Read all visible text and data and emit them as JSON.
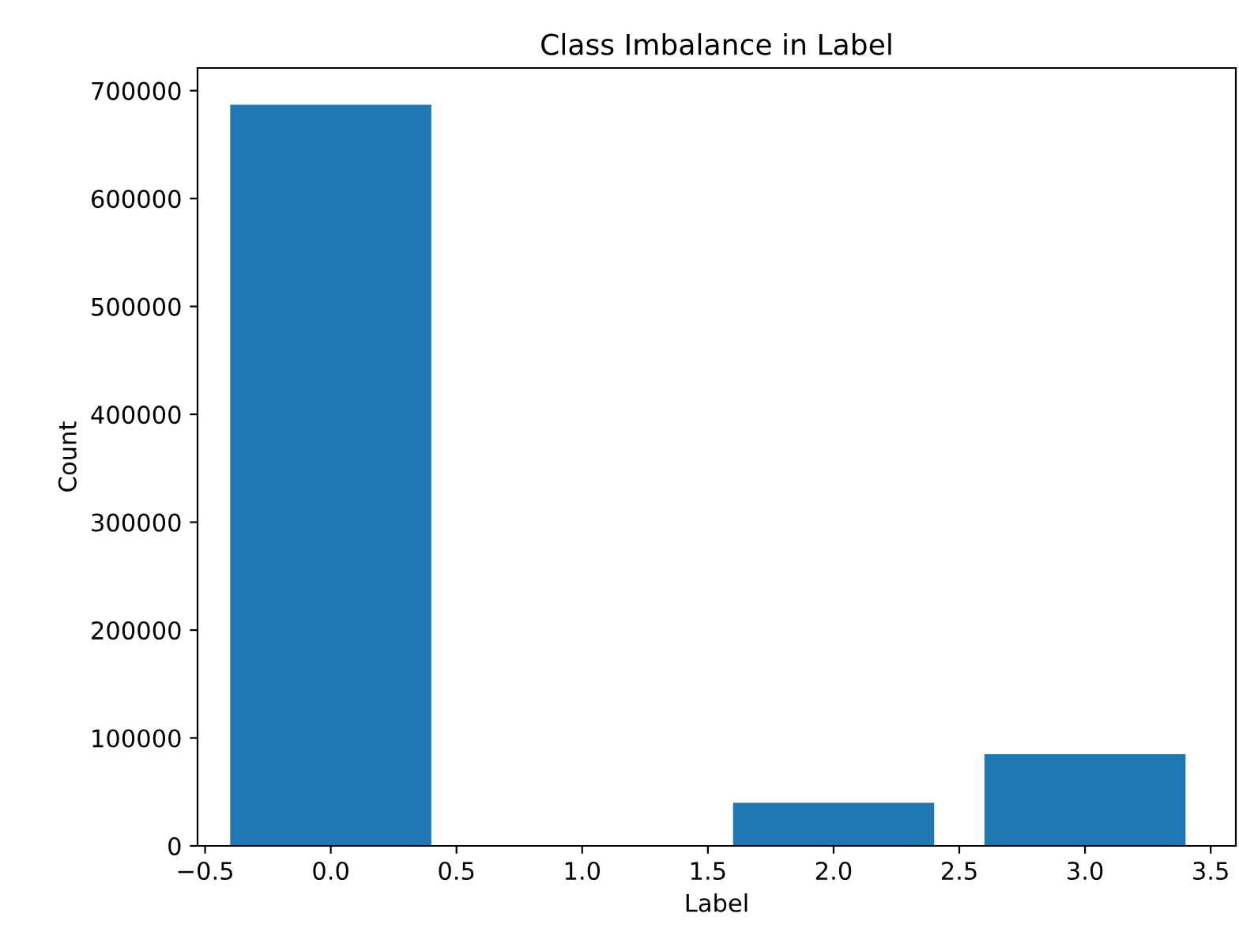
{
  "chart_data": {
    "type": "bar",
    "title": "Class Imbalance in Label",
    "xlabel": "Label",
    "ylabel": "Count",
    "x": [
      0,
      2,
      3
    ],
    "values": [
      687000,
      40000,
      85000
    ],
    "color": "#1f77b4",
    "xlim": [
      -0.53,
      3.6
    ],
    "xticks": [
      {
        "value": -0.5,
        "label": "−0.5"
      },
      {
        "value": 0,
        "label": "0.0"
      },
      {
        "value": 0.5,
        "label": "0.5"
      },
      {
        "value": 1,
        "label": "1.0"
      },
      {
        "value": 1.5,
        "label": "1.5"
      },
      {
        "value": 2,
        "label": "2.0"
      },
      {
        "value": 2.5,
        "label": "2.5"
      },
      {
        "value": 3,
        "label": "3.0"
      },
      {
        "value": 3.5,
        "label": "3.5"
      }
    ],
    "ylim": [
      0,
      721000
    ],
    "yticks": [
      0,
      100000,
      200000,
      300000,
      400000,
      500000,
      600000,
      700000
    ],
    "grid": false
  }
}
